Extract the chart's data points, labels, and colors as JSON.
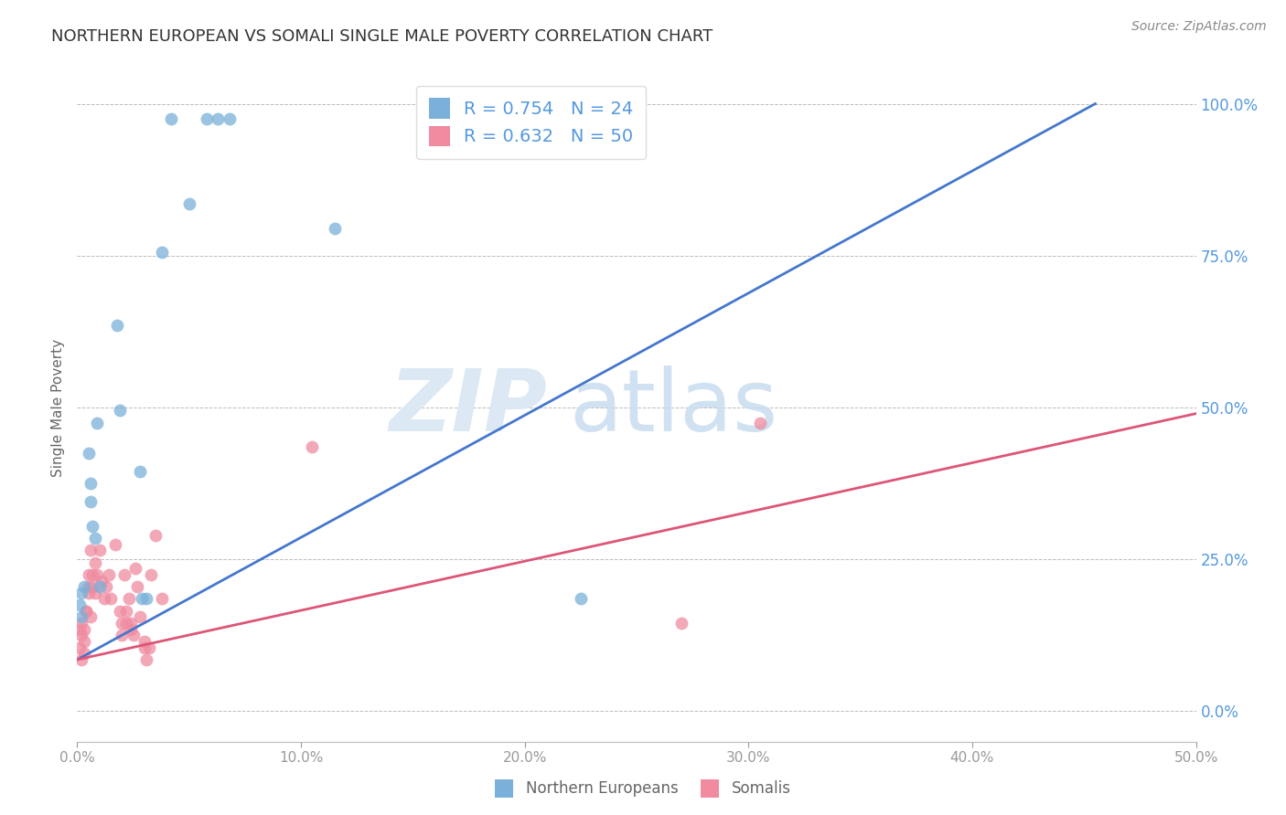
{
  "title": "NORTHERN EUROPEAN VS SOMALI SINGLE MALE POVERTY CORRELATION CHART",
  "source": "Source: ZipAtlas.com",
  "ylabel": "Single Male Poverty",
  "xlim": [
    0.0,
    0.5
  ],
  "ylim": [
    -0.05,
    1.05
  ],
  "legend_R_blue": "R = 0.754",
  "legend_N_blue": "N = 24",
  "legend_R_pink": "R = 0.632",
  "legend_N_pink": "N = 50",
  "blue_scatter": [
    [
      0.001,
      0.175
    ],
    [
      0.002,
      0.195
    ],
    [
      0.002,
      0.155
    ],
    [
      0.003,
      0.205
    ],
    [
      0.005,
      0.425
    ],
    [
      0.006,
      0.375
    ],
    [
      0.006,
      0.345
    ],
    [
      0.007,
      0.305
    ],
    [
      0.008,
      0.285
    ],
    [
      0.009,
      0.475
    ],
    [
      0.01,
      0.205
    ],
    [
      0.018,
      0.635
    ],
    [
      0.019,
      0.495
    ],
    [
      0.028,
      0.395
    ],
    [
      0.029,
      0.185
    ],
    [
      0.031,
      0.185
    ],
    [
      0.042,
      0.975
    ],
    [
      0.058,
      0.975
    ],
    [
      0.063,
      0.975
    ],
    [
      0.068,
      0.975
    ],
    [
      0.038,
      0.755
    ],
    [
      0.05,
      0.835
    ],
    [
      0.115,
      0.795
    ],
    [
      0.225,
      0.185
    ]
  ],
  "pink_scatter": [
    [
      0.001,
      0.135
    ],
    [
      0.001,
      0.105
    ],
    [
      0.002,
      0.125
    ],
    [
      0.002,
      0.085
    ],
    [
      0.002,
      0.145
    ],
    [
      0.003,
      0.115
    ],
    [
      0.003,
      0.095
    ],
    [
      0.003,
      0.135
    ],
    [
      0.004,
      0.165
    ],
    [
      0.004,
      0.165
    ],
    [
      0.005,
      0.195
    ],
    [
      0.005,
      0.225
    ],
    [
      0.005,
      0.205
    ],
    [
      0.006,
      0.155
    ],
    [
      0.006,
      0.265
    ],
    [
      0.007,
      0.205
    ],
    [
      0.007,
      0.225
    ],
    [
      0.008,
      0.245
    ],
    [
      0.008,
      0.195
    ],
    [
      0.009,
      0.225
    ],
    [
      0.01,
      0.265
    ],
    [
      0.011,
      0.215
    ],
    [
      0.012,
      0.185
    ],
    [
      0.013,
      0.205
    ],
    [
      0.014,
      0.225
    ],
    [
      0.015,
      0.185
    ],
    [
      0.017,
      0.275
    ],
    [
      0.019,
      0.165
    ],
    [
      0.02,
      0.145
    ],
    [
      0.02,
      0.125
    ],
    [
      0.021,
      0.225
    ],
    [
      0.022,
      0.165
    ],
    [
      0.022,
      0.145
    ],
    [
      0.023,
      0.185
    ],
    [
      0.024,
      0.145
    ],
    [
      0.024,
      0.135
    ],
    [
      0.025,
      0.125
    ],
    [
      0.026,
      0.235
    ],
    [
      0.027,
      0.205
    ],
    [
      0.028,
      0.155
    ],
    [
      0.03,
      0.105
    ],
    [
      0.03,
      0.115
    ],
    [
      0.031,
      0.085
    ],
    [
      0.032,
      0.105
    ],
    [
      0.035,
      0.29
    ],
    [
      0.27,
      0.145
    ],
    [
      0.105,
      0.435
    ],
    [
      0.305,
      0.475
    ],
    [
      0.033,
      0.225
    ],
    [
      0.038,
      0.185
    ]
  ],
  "blue_line_x": [
    0.0,
    0.455
  ],
  "blue_line_y": [
    0.085,
    1.0
  ],
  "pink_line_x": [
    0.0,
    0.5
  ],
  "pink_line_y": [
    0.085,
    0.49
  ],
  "blue_scatter_color": "#7ab0d9",
  "pink_scatter_color": "#f08ba0",
  "blue_line_color": "#4477cc",
  "pink_line_color": "#dd5577",
  "bg_color": "#ffffff",
  "grid_color": "#bbbbbb",
  "title_color": "#333333",
  "axis_label_color": "#666666",
  "right_tick_color": "#5599dd",
  "bottom_tick_color": "#666666"
}
